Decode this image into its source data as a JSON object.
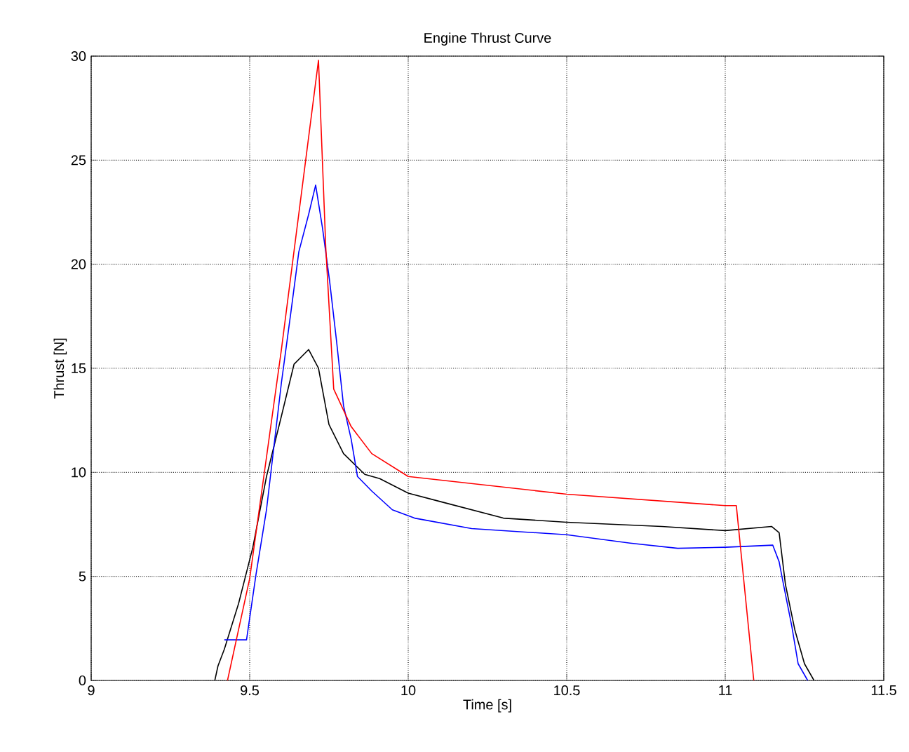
{
  "chart_data": {
    "type": "line",
    "title": "Engine Thrust Curve",
    "xlabel": "Time [s]",
    "ylabel": "Thrust [N]",
    "xlim": [
      9,
      11.5
    ],
    "ylim": [
      0,
      30
    ],
    "xticks": [
      9,
      9.5,
      10,
      10.5,
      11,
      11.5
    ],
    "yticks": [
      0,
      5,
      10,
      15,
      20,
      25,
      30
    ],
    "grid": true,
    "marker": "none",
    "line_style": "solid",
    "series": [
      {
        "color": "#000000",
        "x": [
          9.39,
          9.4,
          9.42,
          9.465,
          9.51,
          9.553,
          9.6,
          9.64,
          9.686,
          9.717,
          9.75,
          9.796,
          9.863,
          9.91,
          10.0,
          10.1,
          10.3,
          10.5,
          10.8,
          11.0,
          11.146,
          11.17,
          11.19,
          11.22,
          11.25,
          11.28
        ],
        "values": [
          0,
          0.7,
          1.5,
          3.7,
          6.4,
          9.8,
          12.7,
          15.2,
          15.9,
          15.0,
          12.3,
          10.9,
          9.9,
          9.7,
          9.0,
          8.6,
          7.8,
          7.6,
          7.4,
          7.2,
          7.4,
          7.1,
          4.6,
          2.4,
          0.8,
          0
        ]
      },
      {
        "color": "#0000ff",
        "x": [
          9.42,
          9.49,
          9.52,
          9.553,
          9.6,
          9.63,
          9.655,
          9.686,
          9.708,
          9.73,
          9.752,
          9.774,
          9.796,
          9.82,
          9.84,
          9.885,
          9.95,
          10.02,
          10.2,
          10.5,
          10.7,
          10.85,
          11.0,
          11.15,
          11.17,
          11.18,
          11.21,
          11.23,
          11.26
        ],
        "values": [
          1.95,
          1.95,
          5.1,
          8.2,
          14.3,
          17.7,
          20.6,
          22.4,
          23.8,
          21.7,
          19.2,
          16.3,
          13.2,
          11.6,
          9.8,
          9.1,
          8.2,
          7.8,
          7.3,
          7.0,
          6.6,
          6.35,
          6.4,
          6.5,
          5.7,
          4.9,
          2.6,
          0.8,
          0
        ]
      },
      {
        "color": "#ff0000",
        "x": [
          9.43,
          9.5,
          9.6,
          9.717,
          9.74,
          9.765,
          9.82,
          9.885,
          10.0,
          10.5,
          11.0,
          11.035,
          11.09
        ],
        "values": [
          0,
          4.9,
          15.9,
          29.8,
          20.8,
          14.0,
          12.2,
          10.9,
          9.8,
          8.95,
          8.4,
          8.4,
          0
        ]
      }
    ]
  }
}
